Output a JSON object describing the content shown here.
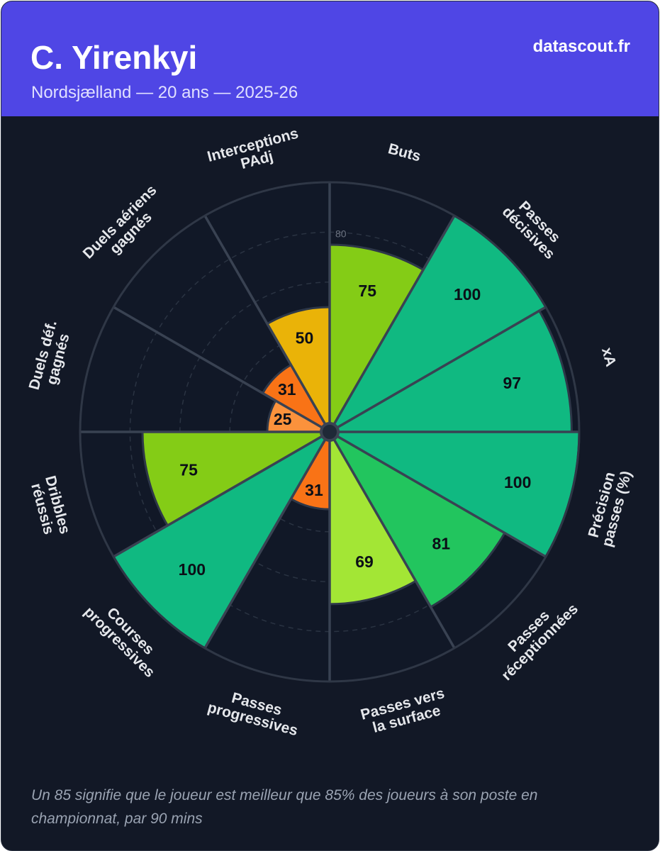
{
  "header": {
    "player_name": "C. Yirenkyi",
    "subtitle": "Nordsjælland — 20 ans — 2025-26",
    "brand": "datascout.fr"
  },
  "footnote": "Un 85 signifie que le joueur est meilleur que 85% des joueurs à son poste en championnat, par 90 mins",
  "chart_data": {
    "type": "radial-bar",
    "title": "C. Yirenkyi",
    "rmax": 100,
    "ring_values": [
      20,
      40,
      60,
      80,
      100
    ],
    "tick_labels": [
      {
        "value": 80,
        "label": "80"
      }
    ],
    "slices": [
      {
        "label": "Buts",
        "value": 75,
        "color": "#84cc16"
      },
      {
        "label": "Passes décisives",
        "value": 100,
        "color": "#10b981"
      },
      {
        "label": "xA",
        "value": 97,
        "color": "#10b981"
      },
      {
        "label": "Précision passes (%)",
        "value": 100,
        "color": "#10b981"
      },
      {
        "label": "Passes réceptionnées",
        "value": 81,
        "color": "#22c55e"
      },
      {
        "label": "Passes vers la surface",
        "value": 69,
        "color": "#a3e635"
      },
      {
        "label": "Passes progressives",
        "value": 31,
        "color": "#f97316"
      },
      {
        "label": "Courses progressives",
        "value": 100,
        "color": "#10b981"
      },
      {
        "label": "Dribbles réussis",
        "value": 75,
        "color": "#84cc16"
      },
      {
        "label": "Duels déf. gagnés",
        "value": 25,
        "color": "#fb923c"
      },
      {
        "label": "Duels aériens gagnés",
        "value": 31,
        "color": "#f97316"
      },
      {
        "label": "Interceptions PAdj",
        "value": 50,
        "color": "#eab308"
      }
    ]
  }
}
